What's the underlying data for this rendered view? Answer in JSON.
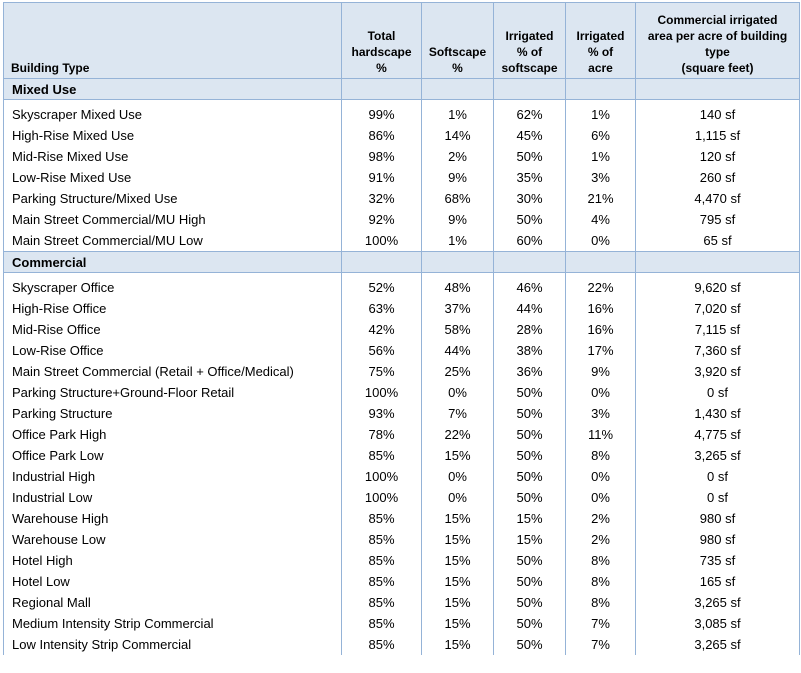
{
  "table": {
    "headers": [
      "Building Type",
      "Total\nhardscape\n%",
      "Softscape\n%",
      "Irrigated\n% of\nsoftscape",
      "Irrigated\n% of\nacre",
      "Commercial irrigated\narea per acre of building\ntype\n(square feet)"
    ],
    "sections": [
      {
        "title": "Mixed Use",
        "rows": [
          [
            "Skyscraper Mixed Use",
            "99%",
            "1%",
            "62%",
            "1%",
            "140 sf"
          ],
          [
            "High-Rise Mixed Use",
            "86%",
            "14%",
            "45%",
            "6%",
            "1,115 sf"
          ],
          [
            "Mid-Rise Mixed Use",
            "98%",
            "2%",
            "50%",
            "1%",
            "120 sf"
          ],
          [
            "Low-Rise Mixed Use",
            "91%",
            "9%",
            "35%",
            "3%",
            "260 sf"
          ],
          [
            "Parking Structure/Mixed Use",
            "32%",
            "68%",
            "30%",
            "21%",
            "4,470 sf"
          ],
          [
            "Main Street Commercial/MU High",
            "92%",
            "9%",
            "50%",
            "4%",
            "795 sf"
          ],
          [
            "Main Street Commercial/MU Low",
            "100%",
            "1%",
            "60%",
            "0%",
            "65 sf"
          ]
        ]
      },
      {
        "title": "Commercial",
        "rows": [
          [
            "Skyscraper Office",
            "52%",
            "48%",
            "46%",
            "22%",
            "9,620 sf"
          ],
          [
            "High-Rise Office",
            "63%",
            "37%",
            "44%",
            "16%",
            "7,020 sf"
          ],
          [
            "Mid-Rise Office",
            "42%",
            "58%",
            "28%",
            "16%",
            "7,115 sf"
          ],
          [
            "Low-Rise Office",
            "56%",
            "44%",
            "38%",
            "17%",
            "7,360 sf"
          ],
          [
            "Main Street Commercial (Retail + Office/Medical)",
            "75%",
            "25%",
            "36%",
            "9%",
            "3,920 sf"
          ],
          [
            "Parking Structure+Ground-Floor Retail",
            "100%",
            "0%",
            "50%",
            "0%",
            "0 sf"
          ],
          [
            "Parking Structure",
            "93%",
            "7%",
            "50%",
            "3%",
            "1,430 sf"
          ],
          [
            "Office Park High",
            "78%",
            "22%",
            "50%",
            "11%",
            "4,775 sf"
          ],
          [
            "Office Park Low",
            "85%",
            "15%",
            "50%",
            "8%",
            "3,265 sf"
          ],
          [
            "Industrial High",
            "100%",
            "0%",
            "50%",
            "0%",
            "0 sf"
          ],
          [
            "Industrial Low",
            "100%",
            "0%",
            "50%",
            "0%",
            "0 sf"
          ],
          [
            "Warehouse High",
            "85%",
            "15%",
            "15%",
            "2%",
            "980 sf"
          ],
          [
            "Warehouse Low",
            "85%",
            "15%",
            "15%",
            "2%",
            "980 sf"
          ],
          [
            "Hotel High",
            "85%",
            "15%",
            "50%",
            "8%",
            "735 sf"
          ],
          [
            "Hotel Low",
            "85%",
            "15%",
            "50%",
            "8%",
            "165 sf"
          ],
          [
            "Regional Mall",
            "85%",
            "15%",
            "50%",
            "8%",
            "3,265 sf"
          ],
          [
            "Medium Intensity Strip Commercial",
            "85%",
            "15%",
            "50%",
            "7%",
            "3,085 sf"
          ],
          [
            "Low Intensity Strip Commercial",
            "85%",
            "15%",
            "50%",
            "7%",
            "3,265 sf"
          ]
        ]
      }
    ]
  }
}
